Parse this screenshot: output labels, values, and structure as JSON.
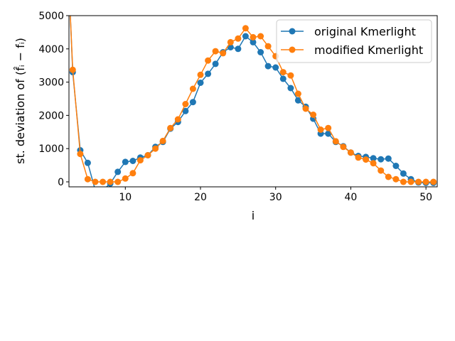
{
  "chart_data": {
    "type": "line",
    "title": "",
    "xlabel": "i",
    "ylabel": "st. deviation of (f̂ᵢ − fᵢ)",
    "xlim": [
      2.5,
      51.5
    ],
    "ylim": [
      -150,
      5000
    ],
    "xticks": [
      10,
      20,
      30,
      40,
      50
    ],
    "yticks": [
      0,
      1000,
      2000,
      3000,
      4000,
      5000
    ],
    "grid": false,
    "legend_position": "top-right",
    "x": [
      3,
      4,
      5,
      6,
      7,
      8,
      9,
      10,
      11,
      12,
      13,
      14,
      15,
      16,
      17,
      18,
      19,
      20,
      21,
      22,
      23,
      24,
      25,
      26,
      27,
      28,
      29,
      30,
      31,
      32,
      33,
      34,
      35,
      36,
      37,
      38,
      39,
      40,
      41,
      42,
      43,
      44,
      45,
      46,
      47,
      48,
      49,
      50,
      51
    ],
    "series": [
      {
        "name": "original Kmerlight",
        "color": "#1f77b4",
        "leading_point": [
          2.6,
          5400
        ],
        "values": [
          3300,
          950,
          570,
          -250,
          -250,
          -50,
          300,
          600,
          630,
          730,
          800,
          1050,
          1200,
          1600,
          1800,
          2130,
          2400,
          2980,
          3250,
          3550,
          3900,
          4050,
          4000,
          4380,
          4200,
          3900,
          3480,
          3440,
          3100,
          2820,
          2450,
          2260,
          1900,
          1450,
          1450,
          1200,
          1070,
          880,
          780,
          750,
          710,
          680,
          700,
          480,
          250,
          80,
          -20,
          -30,
          -30
        ]
      },
      {
        "name": "modified Kmerlight",
        "color": "#ff7f0e",
        "leading_point": [
          2.6,
          5400
        ],
        "values": [
          3370,
          840,
          80,
          0,
          0,
          0,
          0,
          100,
          260,
          650,
          800,
          1000,
          1230,
          1620,
          1880,
          2340,
          2800,
          3220,
          3650,
          3930,
          3870,
          4200,
          4310,
          4620,
          4350,
          4380,
          4080,
          3780,
          3300,
          3200,
          2650,
          2200,
          2020,
          1570,
          1620,
          1220,
          1050,
          880,
          730,
          670,
          560,
          340,
          150,
          80,
          0,
          0,
          0,
          0,
          0
        ]
      }
    ]
  }
}
